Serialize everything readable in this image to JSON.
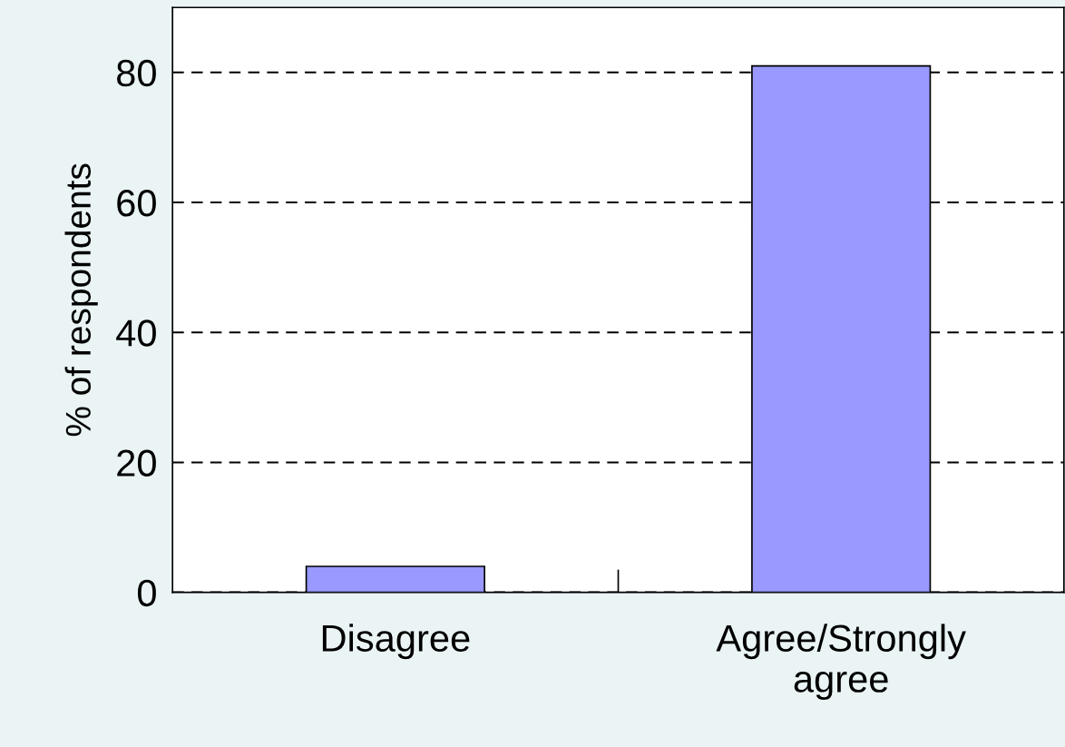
{
  "chart_data": {
    "type": "bar",
    "ylabel": "% of respondents",
    "categories": [
      "Disagree",
      "Agree/Strongly\nagree"
    ],
    "values": [
      4,
      81
    ],
    "color": "#9999ff",
    "ylim": [
      0,
      90
    ],
    "yticks": [
      0,
      20,
      40,
      60,
      80
    ],
    "grid": "y"
  }
}
